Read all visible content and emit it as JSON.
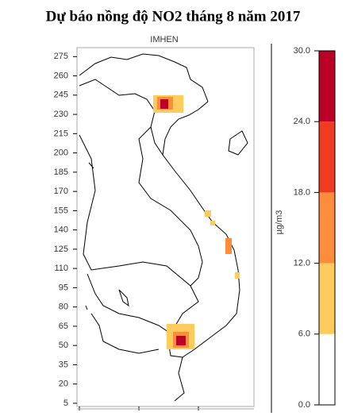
{
  "chart_data": {
    "type": "map",
    "title": "Dự báo nồng độ NO2 tháng 8 năm 2017",
    "subtitle": "IMHEN",
    "ylim": [
      2.5,
      282
    ],
    "yticks": [
      5,
      20,
      35,
      50,
      65,
      80,
      95,
      110,
      125,
      140,
      155,
      170,
      185,
      200,
      215,
      230,
      245,
      260,
      275
    ],
    "colorbar": {
      "label": "µg/m3",
      "colors": [
        "#ffffff",
        "#fecc5c",
        "#fd8d3c",
        "#f03b20",
        "#bd0026"
      ],
      "lim": [
        0,
        30
      ],
      "ticks": [
        {
          "value": 0,
          "label": "0.0"
        },
        {
          "value": 6,
          "label": "6.0"
        },
        {
          "value": 12,
          "label": "12.0"
        },
        {
          "value": 18,
          "label": "18.0"
        },
        {
          "value": 24,
          "label": "24.0"
        },
        {
          "value": 30,
          "label": "30.0"
        }
      ]
    }
  }
}
